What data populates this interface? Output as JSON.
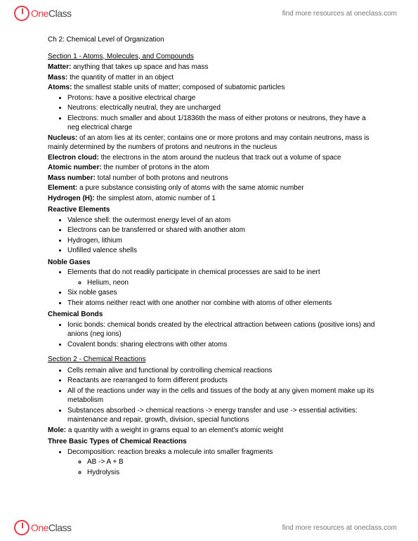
{
  "brand": {
    "one": "One",
    "class": "Class",
    "tagline": "find more resources at oneclass.com"
  },
  "title": "Ch 2: Chemical Level of Organization",
  "s1": {
    "head": "Section 1 - Atoms, Molecules, and Compounds",
    "matter_t": "Matter:",
    "matter_d": " anything that takes up space and has mass",
    "mass_t": "Mass:",
    "mass_d": " the quantity of matter in an object",
    "atoms_t": "Atoms:",
    "atoms_d": " the smallest stable units of matter; composed of subatomic particles",
    "sub": [
      "Protons: have a positive electrical charge",
      "Neutrons: electrically neutral, they are uncharged",
      "Electrons: much smaller and about 1/1836th the mass of either protons or neutrons, they have a neg electrical charge"
    ],
    "nucleus_t": "Nucleus:",
    "nucleus_d": " of an atom lies at its center; contains one or more protons and may contain neutrons, mass is mainly determined by the numbers of protons and neutrons in the nucleus",
    "ec_t": "Electron cloud:",
    "ec_d": " the electrons in the atom around the nucleus that track out a volume of space",
    "an_t": "Atomic number:",
    "an_d": " the number of protons in the atom",
    "mn_t": "Mass number:",
    "mn_d": " total number of both protons and neutrons",
    "el_t": "Element:",
    "el_d": " a pure substance consisting only of atoms with the same atomic number",
    "h_t": "Hydrogen (H):",
    "h_d": " the simplest atom, atomic number of 1",
    "re_head": "Reactive Elements",
    "re": [
      "Valence shell: the outermost energy level of an atom",
      "Electrons can be transferred or shared with another atom",
      "Hydrogen, lithium",
      "Unfilled valence shells"
    ],
    "ng_head": "Noble Gases",
    "ng1": "Elements that do not readily participate in chemical processes are said to be inert",
    "ng1a": "Helium, neon",
    "ng2": "Six noble gases",
    "ng3": "Their atoms neither react with one another nor combine with atoms of other elements",
    "cb_head": "Chemical Bonds",
    "cb1": "Ionic bonds: chemical bonds created by the electrical attraction between cations (positive ions) and anions (neg ions)",
    "cb2": "Covalent bonds: sharing electrons with other atoms"
  },
  "s2": {
    "head": "Section 2 - Chemical Reactions",
    "b": [
      "Cells remain alive and functional by controlling chemical reactions",
      "Reactants are rearranged to form different products",
      "All of the reactions under way in the cells and tissues of the body at any given moment make up its metabolism",
      "Substances absorbed -> chemical reactions -> energy transfer and use -> essential activities: maintenance and repair, growth, division, special functions"
    ],
    "mole_t": "Mole:",
    "mole_d": " a quantity with a weight in grams equal to an element's atomic weight",
    "types_head": "Three Basic Types of Chemical Reactions",
    "dec": "Decomposition: reaction breaks a molecule into smaller fragments",
    "dec_a": "AB -> A + B",
    "dec_b": "Hydrolysis"
  }
}
